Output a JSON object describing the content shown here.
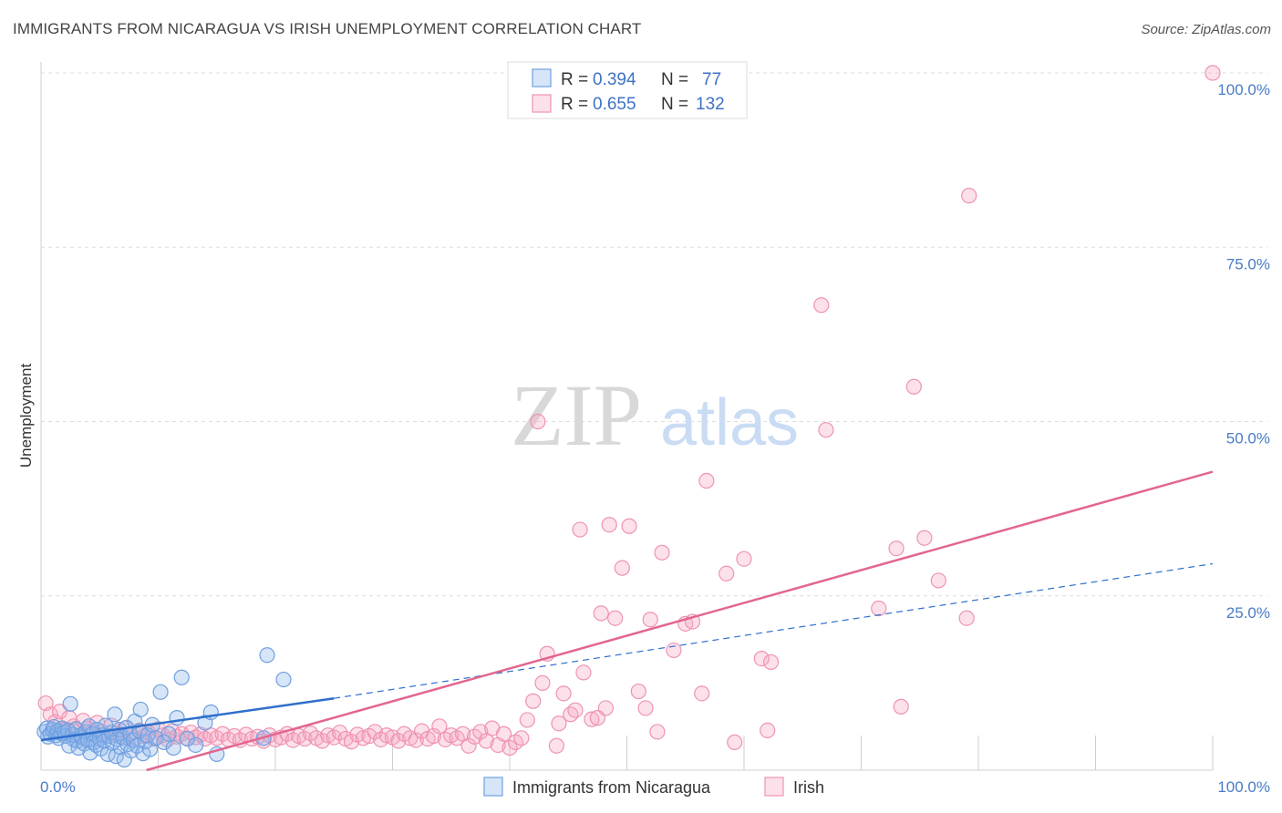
{
  "title": "IMMIGRANTS FROM NICARAGUA VS IRISH UNEMPLOYMENT CORRELATION CHART",
  "source": "Source: ZipAtlas.com",
  "watermark": {
    "zip": "ZIP",
    "atlas": "atlas"
  },
  "legend": {
    "rows": [
      {
        "r_label": "R = ",
        "r_value": "0.394",
        "n_label": "N = ",
        "n_value": "77"
      },
      {
        "r_label": "R = ",
        "r_value": "0.655",
        "n_label": "N = ",
        "n_value": "132"
      }
    ]
  },
  "bottom_legend": [
    "Immigrants from Nicaragua",
    "Irish"
  ],
  "colors": {
    "nicaragua": "#6fa0e0",
    "nicaragua_fill": "rgba(140,180,235,0.35)",
    "nicaragua_line": "#2f6fcb",
    "irish": "#ee93b1",
    "irish_fill": "rgba(245,170,195,0.35)",
    "irish_line": "#e2668f",
    "grid": "#dddddd",
    "tick_label": "#4a7cc8"
  },
  "chart_data": {
    "type": "scatter",
    "title": "IMMIGRANTS FROM NICARAGUA VS IRISH UNEMPLOYMENT CORRELATION CHART",
    "xlabel": "",
    "ylabel": "Unemployment",
    "xlim": [
      0,
      100
    ],
    "ylim": [
      0,
      100
    ],
    "x_tick_labels": [
      "0.0%",
      "100.0%"
    ],
    "y_ticks": [
      25,
      50,
      75,
      100
    ],
    "y_tick_labels": [
      "25.0%",
      "50.0%",
      "75.0%",
      "100.0%"
    ],
    "grid": true,
    "legend_position": "top-center",
    "series": [
      {
        "name": "Immigrants from Nicaragua",
        "r": 0.394,
        "n": 77,
        "trend": {
          "x": [
            0,
            25
          ],
          "y": [
            4.3,
            10.3
          ],
          "dashed_to": [
            100,
            29.6
          ]
        },
        "points": [
          [
            0.3,
            5.5
          ],
          [
            0.5,
            6.0
          ],
          [
            0.6,
            4.8
          ],
          [
            0.8,
            5.2
          ],
          [
            1.0,
            5.8
          ],
          [
            1.1,
            6.2
          ],
          [
            1.3,
            5.0
          ],
          [
            1.4,
            5.6
          ],
          [
            1.5,
            4.6
          ],
          [
            1.7,
            5.3
          ],
          [
            1.8,
            6.0
          ],
          [
            2.0,
            5.4
          ],
          [
            2.1,
            4.9
          ],
          [
            2.3,
            5.7
          ],
          [
            2.4,
            3.5
          ],
          [
            2.5,
            9.5
          ],
          [
            2.7,
            5.1
          ],
          [
            2.8,
            4.4
          ],
          [
            3.0,
            5.9
          ],
          [
            3.1,
            4.2
          ],
          [
            3.2,
            3.2
          ],
          [
            3.4,
            5.0
          ],
          [
            3.5,
            4.7
          ],
          [
            3.7,
            3.8
          ],
          [
            3.8,
            5.5
          ],
          [
            4.0,
            4.3
          ],
          [
            4.1,
            6.3
          ],
          [
            4.2,
            2.5
          ],
          [
            4.4,
            5.2
          ],
          [
            4.5,
            4.0
          ],
          [
            4.7,
            3.6
          ],
          [
            4.8,
            5.8
          ],
          [
            5.0,
            4.5
          ],
          [
            5.1,
            3.1
          ],
          [
            5.3,
            5.0
          ],
          [
            5.4,
            4.2
          ],
          [
            5.5,
            6.4
          ],
          [
            5.7,
            2.3
          ],
          [
            5.8,
            4.9
          ],
          [
            6.0,
            5.4
          ],
          [
            6.1,
            3.9
          ],
          [
            6.3,
            8.0
          ],
          [
            6.4,
            2.0
          ],
          [
            6.5,
            4.4
          ],
          [
            6.7,
            5.8
          ],
          [
            6.8,
            3.3
          ],
          [
            7.0,
            4.7
          ],
          [
            7.1,
            1.5
          ],
          [
            7.3,
            6.1
          ],
          [
            7.4,
            3.7
          ],
          [
            7.6,
            5.2
          ],
          [
            7.7,
            2.8
          ],
          [
            7.9,
            4.3
          ],
          [
            8.0,
            7.0
          ],
          [
            8.2,
            3.5
          ],
          [
            8.4,
            5.6
          ],
          [
            8.5,
            8.7
          ],
          [
            8.7,
            2.4
          ],
          [
            8.9,
            4.1
          ],
          [
            9.1,
            5.0
          ],
          [
            9.3,
            3.0
          ],
          [
            9.5,
            6.5
          ],
          [
            9.8,
            4.6
          ],
          [
            10.2,
            11.2
          ],
          [
            10.5,
            4.0
          ],
          [
            10.9,
            5.2
          ],
          [
            11.3,
            3.2
          ],
          [
            11.6,
            7.5
          ],
          [
            12.0,
            13.3
          ],
          [
            12.5,
            4.5
          ],
          [
            13.2,
            3.6
          ],
          [
            14.0,
            6.8
          ],
          [
            14.5,
            8.3
          ],
          [
            15.0,
            2.3
          ],
          [
            19.0,
            4.6
          ],
          [
            19.3,
            16.5
          ],
          [
            20.7,
            13.0
          ]
        ]
      },
      {
        "name": "Irish",
        "r": 0.655,
        "n": 132,
        "trend": {
          "x": [
            9,
            100
          ],
          "y": [
            0,
            42.8
          ]
        },
        "points": [
          [
            0.4,
            9.6
          ],
          [
            0.8,
            8.0
          ],
          [
            1.2,
            6.9
          ],
          [
            1.6,
            8.4
          ],
          [
            2.0,
            5.8
          ],
          [
            2.4,
            7.5
          ],
          [
            2.8,
            6.3
          ],
          [
            3.2,
            5.6
          ],
          [
            3.6,
            7.1
          ],
          [
            4.0,
            6.0
          ],
          [
            4.4,
            5.2
          ],
          [
            4.8,
            6.8
          ],
          [
            5.2,
            5.5
          ],
          [
            5.6,
            4.9
          ],
          [
            6.0,
            6.4
          ],
          [
            6.4,
            5.3
          ],
          [
            6.8,
            4.8
          ],
          [
            7.2,
            6.0
          ],
          [
            7.6,
            5.1
          ],
          [
            8.0,
            4.6
          ],
          [
            8.4,
            5.7
          ],
          [
            8.8,
            4.9
          ],
          [
            9.2,
            5.3
          ],
          [
            9.6,
            4.5
          ],
          [
            10.0,
            5.9
          ],
          [
            10.4,
            5.0
          ],
          [
            10.8,
            4.4
          ],
          [
            11.2,
            5.6
          ],
          [
            11.6,
            4.8
          ],
          [
            12.0,
            5.2
          ],
          [
            12.4,
            4.6
          ],
          [
            12.8,
            5.4
          ],
          [
            13.2,
            4.7
          ],
          [
            13.6,
            5.1
          ],
          [
            14.0,
            4.5
          ],
          [
            14.5,
            5.0
          ],
          [
            15.0,
            4.6
          ],
          [
            15.5,
            5.2
          ],
          [
            16.0,
            4.4
          ],
          [
            16.5,
            4.9
          ],
          [
            17.0,
            4.3
          ],
          [
            17.5,
            5.1
          ],
          [
            18.0,
            4.5
          ],
          [
            18.5,
            4.8
          ],
          [
            19.0,
            4.2
          ],
          [
            19.5,
            5.0
          ],
          [
            20.0,
            4.4
          ],
          [
            20.5,
            4.7
          ],
          [
            21.0,
            5.2
          ],
          [
            21.5,
            4.3
          ],
          [
            22.0,
            4.9
          ],
          [
            22.5,
            4.5
          ],
          [
            23.0,
            5.3
          ],
          [
            23.5,
            4.6
          ],
          [
            24.0,
            4.2
          ],
          [
            24.5,
            5.0
          ],
          [
            25.0,
            4.7
          ],
          [
            25.5,
            5.4
          ],
          [
            26.0,
            4.5
          ],
          [
            26.5,
            4.1
          ],
          [
            27.0,
            5.1
          ],
          [
            27.5,
            4.6
          ],
          [
            28.0,
            4.9
          ],
          [
            28.5,
            5.5
          ],
          [
            29.0,
            4.4
          ],
          [
            29.5,
            5.0
          ],
          [
            30.0,
            4.7
          ],
          [
            30.5,
            4.2
          ],
          [
            31.0,
            5.2
          ],
          [
            31.5,
            4.6
          ],
          [
            32.0,
            4.3
          ],
          [
            32.5,
            5.6
          ],
          [
            33.0,
            4.5
          ],
          [
            33.5,
            4.9
          ],
          [
            34.0,
            6.3
          ],
          [
            34.5,
            4.4
          ],
          [
            35.0,
            5.0
          ],
          [
            35.5,
            4.6
          ],
          [
            36.0,
            5.2
          ],
          [
            36.5,
            3.5
          ],
          [
            37.0,
            4.8
          ],
          [
            37.5,
            5.5
          ],
          [
            38.0,
            4.2
          ],
          [
            38.5,
            6.0
          ],
          [
            39.0,
            3.6
          ],
          [
            39.5,
            5.2
          ],
          [
            40.0,
            3.2
          ],
          [
            40.5,
            4.0
          ],
          [
            41.0,
            4.6
          ],
          [
            41.5,
            7.2
          ],
          [
            42.0,
            9.9
          ],
          [
            42.4,
            50.0
          ],
          [
            42.8,
            12.5
          ],
          [
            43.2,
            16.7
          ],
          [
            44.0,
            3.5
          ],
          [
            44.2,
            6.7
          ],
          [
            44.6,
            11.0
          ],
          [
            45.2,
            8.0
          ],
          [
            45.6,
            8.6
          ],
          [
            46.0,
            34.5
          ],
          [
            46.3,
            14.0
          ],
          [
            47.0,
            7.3
          ],
          [
            47.5,
            7.5
          ],
          [
            47.8,
            22.5
          ],
          [
            48.2,
            8.9
          ],
          [
            48.5,
            35.2
          ],
          [
            49.0,
            21.8
          ],
          [
            49.6,
            29.0
          ],
          [
            50.2,
            35.0
          ],
          [
            51.0,
            11.3
          ],
          [
            52.0,
            21.6
          ],
          [
            51.6,
            8.9
          ],
          [
            52.6,
            5.5
          ],
          [
            53.0,
            31.2
          ],
          [
            54.0,
            17.2
          ],
          [
            55.0,
            21.0
          ],
          [
            55.6,
            21.3
          ],
          [
            56.4,
            11.0
          ],
          [
            56.8,
            41.5
          ],
          [
            58.5,
            28.2
          ],
          [
            59.2,
            4.0
          ],
          [
            60.0,
            30.3
          ],
          [
            61.5,
            16.0
          ],
          [
            62.0,
            5.7
          ],
          [
            62.3,
            15.5
          ],
          [
            66.6,
            66.7
          ],
          [
            67.0,
            48.8
          ],
          [
            71.5,
            23.2
          ],
          [
            73.0,
            31.8
          ],
          [
            73.4,
            9.1
          ],
          [
            74.5,
            55.0
          ],
          [
            75.4,
            33.3
          ],
          [
            76.6,
            27.2
          ],
          [
            79.0,
            21.8
          ],
          [
            79.2,
            82.4
          ],
          [
            100.0,
            100.0
          ]
        ]
      }
    ]
  }
}
